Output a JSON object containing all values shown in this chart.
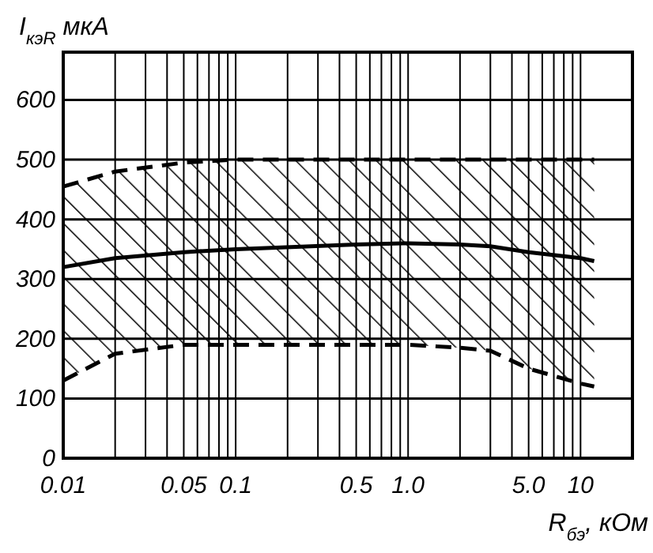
{
  "chart_data": {
    "type": "line",
    "xlabel": "R$_{бэ}$, кОм",
    "ylabel": "I$_{кэR}$ мкА",
    "log": "x",
    "grid": true,
    "marker": "none",
    "xlim": [
      0.01,
      20
    ],
    "ylim": [
      0,
      680
    ],
    "xticks": [
      {
        "value": 0.01,
        "label": "0.01"
      },
      {
        "value": 0.02,
        "label": null
      },
      {
        "value": 0.03,
        "label": null
      },
      {
        "value": 0.04,
        "label": null
      },
      {
        "value": 0.05,
        "label": "0.05"
      },
      {
        "value": 0.06,
        "label": null
      },
      {
        "value": 0.07,
        "label": null
      },
      {
        "value": 0.08,
        "label": null
      },
      {
        "value": 0.09,
        "label": null
      },
      {
        "value": 0.1,
        "label": "0.1"
      },
      {
        "value": 0.2,
        "label": null
      },
      {
        "value": 0.3,
        "label": null
      },
      {
        "value": 0.4,
        "label": null
      },
      {
        "value": 0.5,
        "label": "0.5"
      },
      {
        "value": 0.6,
        "label": null
      },
      {
        "value": 0.7,
        "label": null
      },
      {
        "value": 0.8,
        "label": null
      },
      {
        "value": 0.9,
        "label": null
      },
      {
        "value": 1,
        "label": "1.0"
      },
      {
        "value": 2,
        "label": null
      },
      {
        "value": 3,
        "label": null
      },
      {
        "value": 4,
        "label": null
      },
      {
        "value": 5,
        "label": "5.0"
      },
      {
        "value": 6,
        "label": null
      },
      {
        "value": 7,
        "label": null
      },
      {
        "value": 8,
        "label": null
      },
      {
        "value": 9,
        "label": null
      },
      {
        "value": 10,
        "label": "10"
      }
    ],
    "yticks": [
      0,
      100,
      200,
      300,
      400,
      500,
      600
    ],
    "x": [
      0.01,
      0.02,
      0.05,
      0.1,
      0.5,
      1,
      2,
      3,
      5,
      10,
      12
    ],
    "series": [
      {
        "color": "#000000",
        "line_style": "dashed",
        "values": [
          455,
          480,
          495,
          500,
          500,
          500,
          500,
          500,
          500,
          500,
          500
        ]
      },
      {
        "color": "#000000",
        "line_style": "solid",
        "values": [
          320,
          335,
          345,
          350,
          358,
          360,
          358,
          355,
          345,
          335,
          330
        ],
        "lower": [
          130,
          175,
          190,
          190,
          190,
          190,
          185,
          180,
          150,
          125,
          120
        ],
        "upper": [
          455,
          480,
          495,
          500,
          500,
          500,
          500,
          500,
          500,
          500,
          500
        ]
      },
      {
        "color": "#000000",
        "line_style": "dashed",
        "values": [
          130,
          175,
          190,
          190,
          190,
          190,
          185,
          180,
          150,
          125,
          120
        ]
      }
    ]
  }
}
